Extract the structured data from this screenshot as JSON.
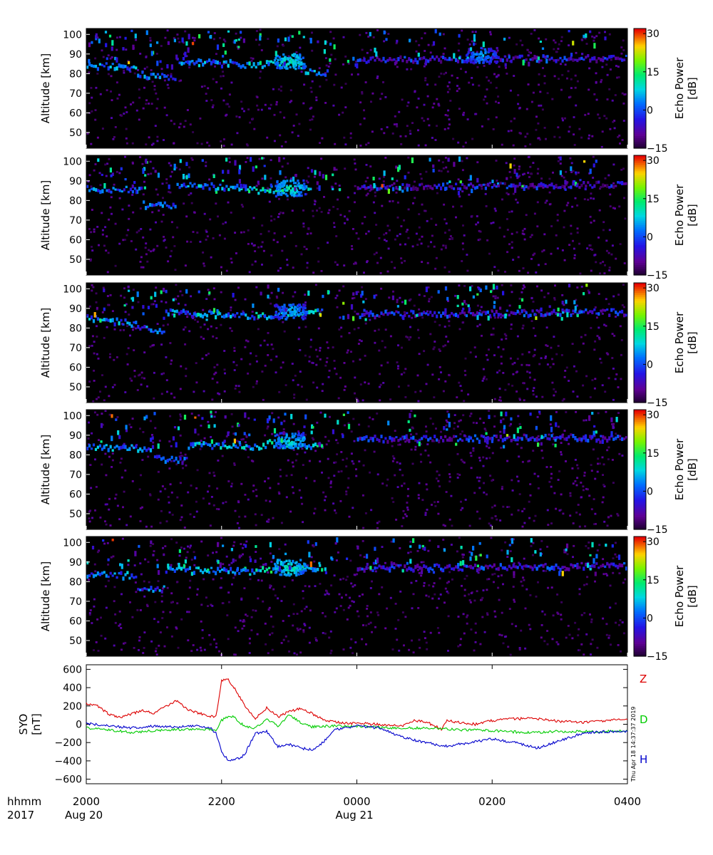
{
  "figure": {
    "timestamp": "Thu Apr 18 14:37:37 2019",
    "footer_left": [
      "hhmm",
      "2017"
    ],
    "x_ticks": [
      "2000",
      "2200",
      "0000",
      "0200",
      "0400"
    ],
    "date_labels": [
      {
        "at": "2000",
        "text": "Aug 20"
      },
      {
        "at": "0000",
        "text": "Aug 21"
      }
    ]
  },
  "chart_data": [
    {
      "type": "heatmap",
      "panel": 1,
      "ylabel": "Altitude [km]",
      "ylim": [
        42,
        103
      ],
      "y_ticks": [
        "50",
        "60",
        "70",
        "80",
        "90",
        "100"
      ],
      "colorbar": {
        "label": [
          "Echo Power",
          "[dB]"
        ],
        "range": [
          -15,
          32
        ],
        "ticks": [
          "30",
          "15",
          "0",
          "-15"
        ]
      },
      "x_time": {
        "start": "2017-08-20 20:00",
        "end": "2017-08-21 04:00"
      },
      "background_level_db": -15,
      "echo_layers": [
        {
          "from_time": "2017-08-20 20:00",
          "to_time": "2017-08-20 20:45",
          "alt_from_km": 84,
          "alt_to_km": 83,
          "power_db": 3
        },
        {
          "from_time": "2017-08-20 20:45",
          "to_time": "2017-08-20 21:20",
          "alt_from_km": 80,
          "alt_to_km": 77,
          "power_db": 0
        },
        {
          "from_time": "2017-08-20 21:20",
          "to_time": "2017-08-20 22:20",
          "alt_from_km": 86,
          "alt_to_km": 85,
          "power_db": 2
        },
        {
          "from_time": "2017-08-20 22:20",
          "to_time": "2017-08-20 23:10",
          "alt_from_km": 84,
          "alt_to_km": 86,
          "power_db": 8
        },
        {
          "from_time": "2017-08-20 23:10",
          "to_time": "2017-08-20 23:35",
          "alt_from_km": 82,
          "alt_to_km": 80,
          "power_db": 3
        },
        {
          "from_time": "2017-08-21 00:00",
          "to_time": "2017-08-21 04:00",
          "alt_from_km": 87,
          "alt_to_km": 88,
          "power_db": -5
        }
      ],
      "blobs": [
        {
          "time": "2017-08-20 23:00",
          "alt_km": 86,
          "power_db": 12
        },
        {
          "time": "2017-08-21 01:50",
          "alt_km": 89,
          "power_db": 6
        }
      ]
    },
    {
      "type": "heatmap",
      "panel": 2,
      "ylabel": "Altitude [km]",
      "ylim": [
        42,
        103
      ],
      "y_ticks": [
        "50",
        "60",
        "70",
        "80",
        "90",
        "100"
      ],
      "colorbar": {
        "label": [
          "Echo Power",
          "[dB]"
        ],
        "range": [
          -15,
          32
        ],
        "ticks": [
          "30",
          "15",
          "0",
          "-15"
        ]
      },
      "x_time": {
        "start": "2017-08-20 20:00",
        "end": "2017-08-21 04:00"
      },
      "background_level_db": -15,
      "echo_layers": [
        {
          "from_time": "2017-08-20 20:00",
          "to_time": "2017-08-20 20:50",
          "alt_from_km": 86,
          "alt_to_km": 85,
          "power_db": 0
        },
        {
          "from_time": "2017-08-20 20:50",
          "to_time": "2017-08-20 21:20",
          "alt_from_km": 78,
          "alt_to_km": 77,
          "power_db": 0
        },
        {
          "from_time": "2017-08-20 21:20",
          "to_time": "2017-08-20 22:30",
          "alt_from_km": 88,
          "alt_to_km": 86,
          "power_db": 3
        },
        {
          "from_time": "2017-08-20 22:30",
          "to_time": "2017-08-20 23:20",
          "alt_from_km": 85,
          "alt_to_km": 87,
          "power_db": 9
        },
        {
          "from_time": "2017-08-21 00:00",
          "to_time": "2017-08-21 04:00",
          "alt_from_km": 87,
          "alt_to_km": 88,
          "power_db": -6
        }
      ],
      "blobs": [
        {
          "time": "2017-08-20 23:00",
          "alt_km": 86,
          "power_db": 12
        }
      ]
    },
    {
      "type": "heatmap",
      "panel": 3,
      "ylabel": "Altitude [km]",
      "ylim": [
        42,
        103
      ],
      "y_ticks": [
        "50",
        "60",
        "70",
        "80",
        "90",
        "100"
      ],
      "colorbar": {
        "label": [
          "Echo Power",
          "[dB]"
        ],
        "range": [
          -15,
          32
        ],
        "ticks": [
          "30",
          "15",
          "0",
          "-15"
        ]
      },
      "x_time": {
        "start": "2017-08-20 20:00",
        "end": "2017-08-21 04:00"
      },
      "background_level_db": -15,
      "echo_layers": [
        {
          "from_time": "2017-08-20 20:00",
          "to_time": "2017-08-20 20:45",
          "alt_from_km": 85,
          "alt_to_km": 82,
          "power_db": 3
        },
        {
          "from_time": "2017-08-20 20:45",
          "to_time": "2017-08-20 21:10",
          "alt_from_km": 80,
          "alt_to_km": 78,
          "power_db": 0
        },
        {
          "from_time": "2017-08-20 21:10",
          "to_time": "2017-08-20 22:30",
          "alt_from_km": 88,
          "alt_to_km": 86,
          "power_db": 2
        },
        {
          "from_time": "2017-08-20 22:30",
          "to_time": "2017-08-20 23:30",
          "alt_from_km": 86,
          "alt_to_km": 88,
          "power_db": 6
        },
        {
          "from_time": "2017-08-21 00:00",
          "to_time": "2017-08-21 04:00",
          "alt_from_km": 87,
          "alt_to_km": 88,
          "power_db": -4
        }
      ],
      "blobs": [
        {
          "time": "2017-08-20 23:00",
          "alt_km": 88,
          "power_db": 8
        }
      ]
    },
    {
      "type": "heatmap",
      "panel": 4,
      "ylabel": "Altitude [km]",
      "ylim": [
        42,
        103
      ],
      "y_ticks": [
        "50",
        "60",
        "70",
        "80",
        "90",
        "100"
      ],
      "colorbar": {
        "label": [
          "Echo Power",
          "[dB]"
        ],
        "range": [
          -15,
          32
        ],
        "ticks": [
          "30",
          "15",
          "0",
          "-15"
        ]
      },
      "x_time": {
        "start": "2017-08-20 20:00",
        "end": "2017-08-21 04:00"
      },
      "background_level_db": -15,
      "echo_layers": [
        {
          "from_time": "2017-08-20 20:00",
          "to_time": "2017-08-20 21:00",
          "alt_from_km": 84,
          "alt_to_km": 83,
          "power_db": 2
        },
        {
          "from_time": "2017-08-20 21:00",
          "to_time": "2017-08-20 21:30",
          "alt_from_km": 78,
          "alt_to_km": 77,
          "power_db": -2
        },
        {
          "from_time": "2017-08-20 21:30",
          "to_time": "2017-08-20 22:40",
          "alt_from_km": 85,
          "alt_to_km": 84,
          "power_db": 4
        },
        {
          "from_time": "2017-08-20 22:40",
          "to_time": "2017-08-20 23:30",
          "alt_from_km": 86,
          "alt_to_km": 84,
          "power_db": 8
        },
        {
          "from_time": "2017-08-21 00:00",
          "to_time": "2017-08-21 04:00",
          "alt_from_km": 88,
          "alt_to_km": 89,
          "power_db": -4
        }
      ],
      "blobs": [
        {
          "time": "2017-08-20 23:00",
          "alt_km": 87,
          "power_db": 10
        }
      ]
    },
    {
      "type": "heatmap",
      "panel": 5,
      "ylabel": "Altitude [km]",
      "ylim": [
        42,
        103
      ],
      "y_ticks": [
        "50",
        "60",
        "70",
        "80",
        "90",
        "100"
      ],
      "colorbar": {
        "label": [
          "Echo Power",
          "[dB]"
        ],
        "range": [
          -15,
          32
        ],
        "ticks": [
          "30",
          "15",
          "0",
          "-15"
        ]
      },
      "x_time": {
        "start": "2017-08-20 20:00",
        "end": "2017-08-21 04:00"
      },
      "background_level_db": -15,
      "echo_layers": [
        {
          "from_time": "2017-08-20 20:00",
          "to_time": "2017-08-20 20:45",
          "alt_from_km": 84,
          "alt_to_km": 83,
          "power_db": 2
        },
        {
          "from_time": "2017-08-20 20:45",
          "to_time": "2017-08-20 21:10",
          "alt_from_km": 77,
          "alt_to_km": 76,
          "power_db": 0
        },
        {
          "from_time": "2017-08-20 21:10",
          "to_time": "2017-08-20 22:30",
          "alt_from_km": 86,
          "alt_to_km": 85,
          "power_db": 3
        },
        {
          "from_time": "2017-08-20 22:30",
          "to_time": "2017-08-20 23:30",
          "alt_from_km": 86,
          "alt_to_km": 87,
          "power_db": 9
        },
        {
          "from_time": "2017-08-21 00:00",
          "to_time": "2017-08-21 04:00",
          "alt_from_km": 87,
          "alt_to_km": 88,
          "power_db": -4
        }
      ],
      "blobs": [
        {
          "time": "2017-08-20 23:00",
          "alt_km": 87,
          "power_db": 12
        }
      ]
    },
    {
      "type": "line",
      "panel": 6,
      "ylabel": [
        "SYO",
        "[nT]"
      ],
      "ylim": [
        -650,
        650
      ],
      "y_ticks": [
        "600",
        "400",
        "200",
        "0",
        "-200",
        "-400",
        "-600"
      ],
      "x_time": {
        "start": "2017-08-20 20:00",
        "end": "2017-08-21 04:00"
      },
      "series": [
        {
          "name": "Z",
          "color": "#dd0000",
          "x": [
            "2017-08-20 20:00",
            "2017-08-20 20:10",
            "2017-08-20 20:20",
            "2017-08-20 20:30",
            "2017-08-20 20:40",
            "2017-08-20 20:50",
            "2017-08-20 21:00",
            "2017-08-20 21:10",
            "2017-08-20 21:20",
            "2017-08-20 21:30",
            "2017-08-20 21:40",
            "2017-08-20 21:50",
            "2017-08-20 21:55",
            "2017-08-20 22:00",
            "2017-08-20 22:05",
            "2017-08-20 22:10",
            "2017-08-20 22:20",
            "2017-08-20 22:30",
            "2017-08-20 22:40",
            "2017-08-20 22:50",
            "2017-08-20 23:00",
            "2017-08-20 23:10",
            "2017-08-20 23:20",
            "2017-08-20 23:30",
            "2017-08-20 23:40",
            "2017-08-20 23:50",
            "2017-08-21 00:00",
            "2017-08-21 00:20",
            "2017-08-21 00:40",
            "2017-08-21 00:50",
            "2017-08-21 01:00",
            "2017-08-21 01:10",
            "2017-08-21 01:15",
            "2017-08-21 01:20",
            "2017-08-21 01:30",
            "2017-08-21 01:45",
            "2017-08-21 02:00",
            "2017-08-21 02:20",
            "2017-08-21 02:40",
            "2017-08-21 03:00",
            "2017-08-21 03:20",
            "2017-08-21 03:40",
            "2017-08-21 04:00"
          ],
          "y": [
            230,
            200,
            110,
            80,
            110,
            150,
            120,
            190,
            260,
            160,
            120,
            90,
            80,
            480,
            500,
            420,
            220,
            60,
            180,
            80,
            140,
            170,
            120,
            50,
            30,
            10,
            10,
            0,
            -20,
            40,
            30,
            -20,
            -60,
            40,
            20,
            0,
            40,
            60,
            60,
            30,
            20,
            40,
            50
          ]
        },
        {
          "name": "D",
          "color": "#00cc00",
          "x": [
            "2017-08-20 20:00",
            "2017-08-20 20:20",
            "2017-08-20 20:40",
            "2017-08-20 21:00",
            "2017-08-20 21:20",
            "2017-08-20 21:40",
            "2017-08-20 21:55",
            "2017-08-20 22:00",
            "2017-08-20 22:05",
            "2017-08-20 22:10",
            "2017-08-20 22:20",
            "2017-08-20 22:30",
            "2017-08-20 22:40",
            "2017-08-20 22:50",
            "2017-08-20 23:00",
            "2017-08-20 23:10",
            "2017-08-20 23:20",
            "2017-08-20 23:30",
            "2017-08-20 23:40",
            "2017-08-21 00:00",
            "2017-08-21 00:30",
            "2017-08-21 01:00",
            "2017-08-21 01:30",
            "2017-08-21 02:00",
            "2017-08-21 02:30",
            "2017-08-21 03:00",
            "2017-08-21 03:30",
            "2017-08-21 04:00"
          ],
          "y": [
            -40,
            -60,
            -90,
            -70,
            -60,
            -50,
            -60,
            40,
            80,
            90,
            -20,
            -40,
            60,
            -20,
            100,
            20,
            -30,
            -20,
            -20,
            -20,
            -40,
            -40,
            -60,
            -70,
            -90,
            -80,
            -80,
            -70
          ]
        },
        {
          "name": "H",
          "color": "#0000cc",
          "x": [
            "2017-08-20 20:00",
            "2017-08-20 20:20",
            "2017-08-20 20:40",
            "2017-08-20 21:00",
            "2017-08-20 21:20",
            "2017-08-20 21:40",
            "2017-08-20 21:50",
            "2017-08-20 21:55",
            "2017-08-20 22:00",
            "2017-08-20 22:05",
            "2017-08-20 22:10",
            "2017-08-20 22:20",
            "2017-08-20 22:30",
            "2017-08-20 22:40",
            "2017-08-20 22:50",
            "2017-08-20 23:00",
            "2017-08-20 23:10",
            "2017-08-20 23:20",
            "2017-08-20 23:30",
            "2017-08-20 23:40",
            "2017-08-21 00:00",
            "2017-08-21 00:20",
            "2017-08-21 00:40",
            "2017-08-21 01:00",
            "2017-08-21 01:20",
            "2017-08-21 01:40",
            "2017-08-21 02:00",
            "2017-08-21 02:20",
            "2017-08-21 02:40",
            "2017-08-21 03:00",
            "2017-08-21 03:20",
            "2017-08-21 03:40",
            "2017-08-21 04:00"
          ],
          "y": [
            10,
            -20,
            -40,
            -20,
            -30,
            -20,
            -40,
            -100,
            -300,
            -380,
            -400,
            -340,
            -100,
            -80,
            -240,
            -220,
            -260,
            -280,
            -200,
            -60,
            -20,
            -40,
            -140,
            -200,
            -240,
            -200,
            -160,
            -200,
            -260,
            -180,
            -100,
            -80,
            -80
          ]
        }
      ]
    }
  ]
}
